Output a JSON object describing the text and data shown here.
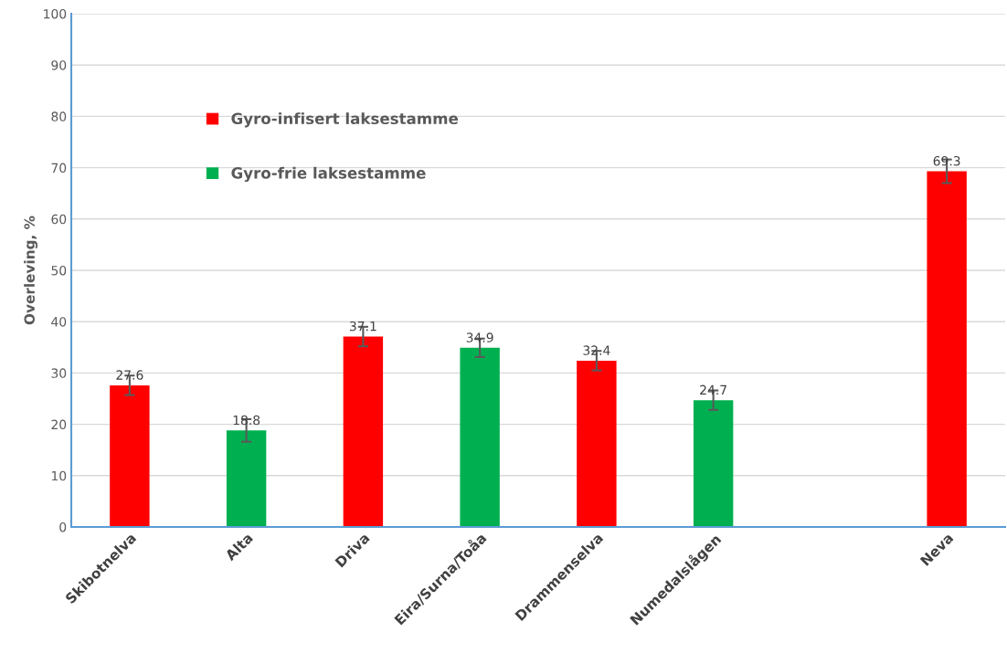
{
  "chart_data": {
    "type": "bar",
    "ylabel": "Overleving, %",
    "categories": [
      "Skibotnelva",
      "Alta",
      "Driva",
      "Eira/Surna/Toåa",
      "Drammenselva",
      "Numedalslågen",
      null,
      "Neva"
    ],
    "series": [
      {
        "name": "Gyro-infisert laksestamme",
        "color": "#ff0000",
        "values": [
          27.6,
          null,
          37.1,
          null,
          32.4,
          null,
          null,
          69.3
        ],
        "errors": [
          1.9,
          null,
          1.9,
          null,
          1.9,
          null,
          null,
          2.3
        ]
      },
      {
        "name": "Gyro-frie laksestamme",
        "color": "#00b050",
        "values": [
          null,
          18.8,
          null,
          34.9,
          null,
          24.7,
          null,
          null
        ],
        "errors": [
          null,
          2.2,
          null,
          1.8,
          null,
          1.9,
          null,
          null
        ]
      }
    ],
    "data_labels": true,
    "ylim": [
      0,
      100
    ],
    "yticks": [
      0,
      10,
      20,
      30,
      40,
      50,
      60,
      70,
      80,
      90,
      100
    ],
    "grid": "y",
    "legend": "left"
  }
}
